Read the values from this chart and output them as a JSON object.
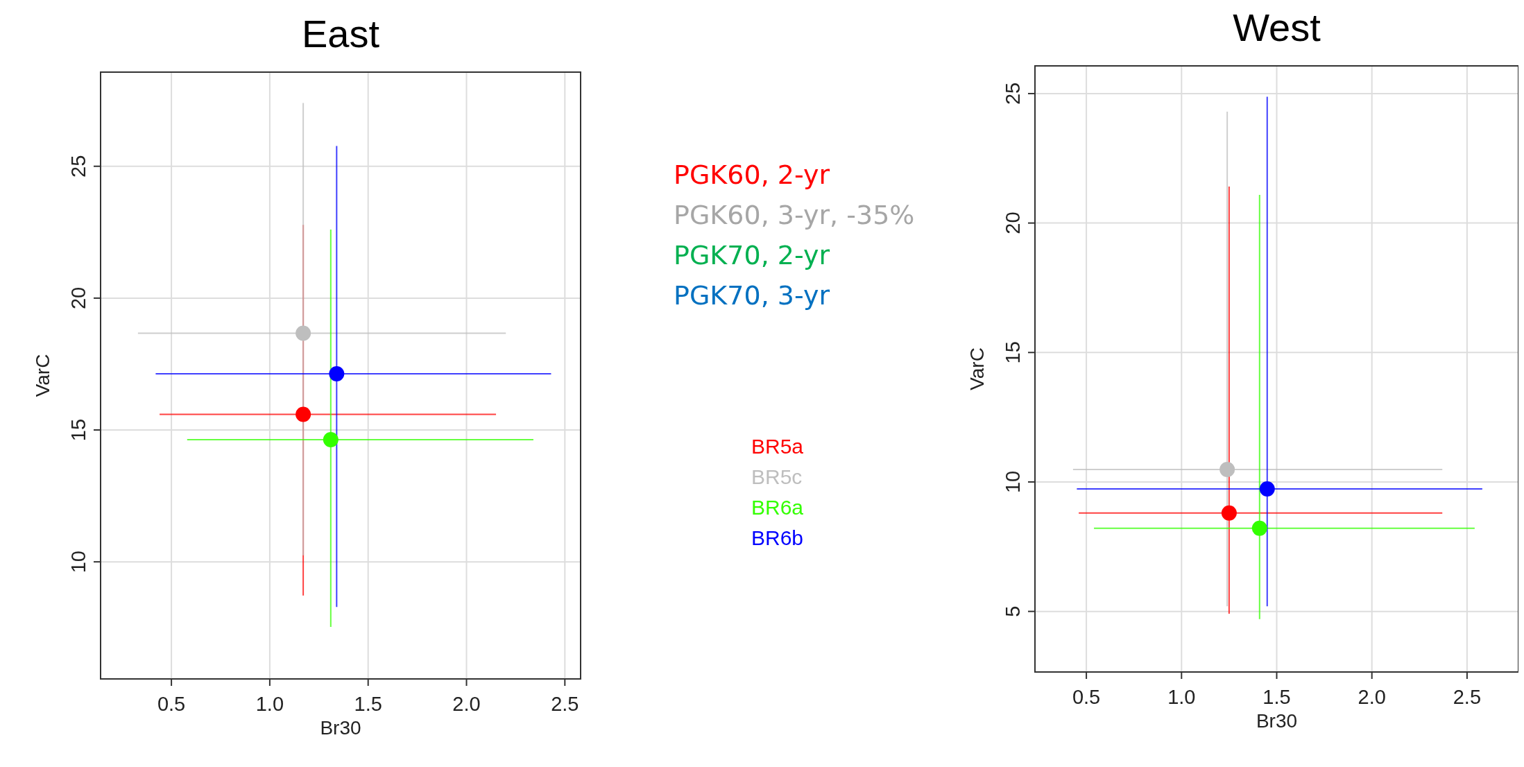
{
  "chart_data": [
    {
      "type": "scatter",
      "title": "East",
      "xlabel": "Br30",
      "ylabel": "VarC",
      "xlim": [
        0.14,
        2.58
      ],
      "ylim": [
        5.56,
        28.57
      ],
      "xticks": [
        {
          "value": 0.5,
          "label": "0.5"
        },
        {
          "value": 1,
          "label": "1.0"
        },
        {
          "value": 1.5,
          "label": "1.5"
        },
        {
          "value": 2,
          "label": "2.0"
        },
        {
          "value": 2.5,
          "label": "2.5"
        }
      ],
      "yticks": [
        10,
        15,
        20,
        25
      ],
      "grid": true,
      "legend": "right",
      "marker": "circle",
      "series": [
        {
          "name": "BR5a",
          "color": "#ff0000",
          "x": [
            1.17
          ],
          "values": [
            15.59
          ],
          "errors": [
            [
              8.72,
              22.78
            ]
          ],
          "xerrors": [
            [
              0.44,
              2.15
            ]
          ]
        },
        {
          "name": "BR5c",
          "color": "#bebebe",
          "x": [
            1.17
          ],
          "values": [
            18.67
          ],
          "errors": [
            [
              10.25,
              27.4
            ]
          ],
          "xerrors": [
            [
              0.33,
              2.2
            ]
          ]
        },
        {
          "name": "BR6a",
          "color": "#33ff00",
          "x": [
            1.31
          ],
          "values": [
            14.63
          ],
          "errors": [
            [
              7.53,
              22.6
            ]
          ],
          "xerrors": [
            [
              0.58,
              2.34
            ]
          ]
        },
        {
          "name": "BR6b",
          "color": "#0000ff",
          "x": [
            1.34
          ],
          "values": [
            17.13
          ],
          "errors": [
            [
              8.29,
              25.77
            ]
          ],
          "xerrors": [
            [
              0.42,
              2.43
            ]
          ]
        }
      ]
    },
    {
      "type": "other",
      "categories": [
        "PGK60, 2-yr",
        "PGK60, 3-yr, -35%",
        "PGK70, 2-yr",
        "PGK70, 3-yr"
      ],
      "colors": [
        "#ff0000",
        "#a6a6a6",
        "#00b050",
        "#0070c0"
      ]
    },
    {
      "type": "scatter",
      "title": "West",
      "xlabel": "Br30",
      "ylabel": "VarC",
      "xlim": [
        0.23,
        2.77
      ],
      "ylim": [
        2.66,
        26.07
      ],
      "xticks": [
        {
          "value": 0.5,
          "label": "0.5"
        },
        {
          "value": 1,
          "label": "1.0"
        },
        {
          "value": 1.5,
          "label": "1.5"
        },
        {
          "value": 2,
          "label": "2.0"
        },
        {
          "value": 2.5,
          "label": "2.5"
        }
      ],
      "yticks": [
        5,
        10,
        15,
        20,
        25
      ],
      "grid": true,
      "marker": "circle",
      "series": [
        {
          "color": "#ff0000",
          "x": [
            1.25
          ],
          "values": [
            8.8
          ],
          "errors": [
            [
              4.91,
              21.41
            ]
          ],
          "xerrors": [
            [
              0.46,
              2.37
            ]
          ]
        },
        {
          "color": "#bebebe",
          "x": [
            1.24
          ],
          "values": [
            10.48
          ],
          "errors": [
            [
              5.2,
              24.3
            ]
          ],
          "xerrors": [
            [
              0.43,
              2.37
            ]
          ]
        },
        {
          "color": "#33ff00",
          "x": [
            1.41
          ],
          "values": [
            8.21
          ],
          "errors": [
            [
              4.7,
              21.09
            ]
          ],
          "xerrors": [
            [
              0.54,
              2.54
            ]
          ]
        },
        {
          "color": "#0000ff",
          "x": [
            1.45
          ],
          "values": [
            9.73
          ],
          "errors": [
            [
              5.2,
              24.88
            ]
          ],
          "xerrors": [
            [
              0.45,
              2.58
            ]
          ]
        }
      ]
    }
  ]
}
